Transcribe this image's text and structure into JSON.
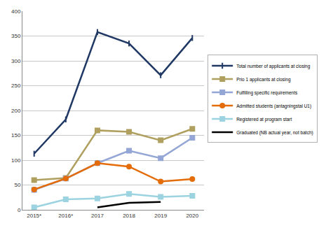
{
  "chart_data": {
    "type": "line",
    "categories": [
      "2015*",
      "2016*",
      "2017",
      "2018",
      "2019",
      "2020"
    ],
    "series": [
      {
        "name": "Total number of applicants at closing",
        "color": "#1f3864",
        "marker": "line-ns",
        "values": [
          113,
          182,
          358,
          335,
          271,
          346
        ]
      },
      {
        "name": "Prio 1 applicants at closing",
        "color": "#b0a060",
        "marker": "square",
        "values": [
          60,
          64,
          160,
          157,
          140,
          163
        ]
      },
      {
        "name": "Fulfilling specific requirements",
        "color": "#94a6d6",
        "marker": "square",
        "values": [
          40,
          63,
          94,
          119,
          104,
          145
        ]
      },
      {
        "name": "Admitted students (antagningstal U1)",
        "color": "#e46c0a",
        "marker": "circle",
        "values": [
          41,
          63,
          94,
          87,
          57,
          62
        ]
      },
      {
        "name": "Registered at program start",
        "color": "#9cd3e0",
        "marker": "square",
        "values": [
          5,
          21,
          23,
          32,
          26,
          28
        ]
      },
      {
        "name": "Graduated (NB actual year, not batch)",
        "color": "#000000",
        "marker": "none",
        "values": [
          null,
          null,
          5,
          14,
          16,
          null
        ]
      }
    ],
    "ylim": [
      0,
      400
    ],
    "yticks": [
      0,
      50,
      100,
      150,
      200,
      250,
      300,
      350,
      400
    ],
    "grid": true,
    "legend": "right"
  }
}
